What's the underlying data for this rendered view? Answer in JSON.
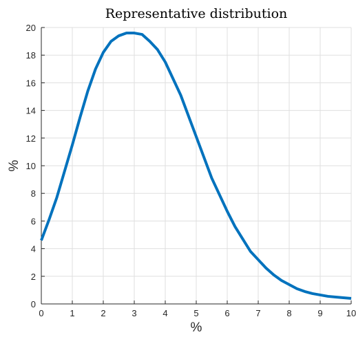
{
  "chart_data": {
    "type": "line",
    "title": "Representative distribution",
    "xlabel": "%",
    "ylabel": "%",
    "xlim": [
      0,
      10
    ],
    "ylim": [
      0,
      20
    ],
    "xticks": [
      "0",
      "1",
      "2",
      "3",
      "4",
      "5",
      "6",
      "7",
      "8",
      "9",
      "10"
    ],
    "yticks": [
      "0",
      "2",
      "4",
      "6",
      "8",
      "10",
      "12",
      "14",
      "16",
      "18",
      "20"
    ],
    "grid": true,
    "legend": "none",
    "line_color": "#0072BD",
    "series": [
      {
        "x": [
          0,
          0.25,
          0.5,
          0.75,
          1,
          1.25,
          1.5,
          1.75,
          2,
          2.25,
          2.5,
          2.75,
          3,
          3.25,
          3.5,
          3.75,
          4,
          4.25,
          4.5,
          4.75,
          5,
          5.25,
          5.5,
          5.75,
          6,
          6.25,
          6.5,
          6.75,
          7,
          7.25,
          7.5,
          7.75,
          8,
          8.25,
          8.5,
          8.75,
          9,
          9.25,
          9.5,
          9.75,
          10
        ],
        "y": [
          4.6,
          6.1,
          7.7,
          9.6,
          11.5,
          13.5,
          15.4,
          17.0,
          18.2,
          19.0,
          19.4,
          19.6,
          19.6,
          19.5,
          19.0,
          18.4,
          17.5,
          16.3,
          15.1,
          13.6,
          12.1,
          10.6,
          9.1,
          7.9,
          6.7,
          5.6,
          4.7,
          3.8,
          3.2,
          2.6,
          2.1,
          1.7,
          1.4,
          1.1,
          0.9,
          0.75,
          0.65,
          0.55,
          0.5,
          0.45,
          0.4
        ]
      }
    ]
  }
}
